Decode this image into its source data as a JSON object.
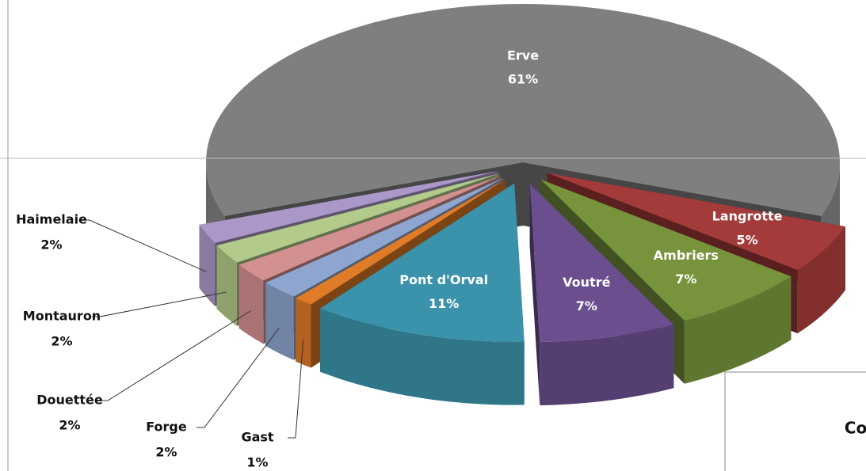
{
  "chart_data": {
    "type": "pie3d",
    "categories": [
      "Erve",
      "Langrotte",
      "Ambriers",
      "Voutré",
      "Pont d'Orval",
      "Gast",
      "Forge",
      "Douettée",
      "Montauron",
      "Haimelaie"
    ],
    "values": [
      61,
      5,
      7,
      7,
      11,
      1,
      2,
      2,
      2,
      2
    ],
    "value_labels": [
      "61%",
      "5%",
      "7%",
      "7%",
      "11%",
      "1%",
      "2%",
      "2%",
      "2%",
      "2%"
    ],
    "colors": [
      "#7f7f7f",
      "#a23b39",
      "#77933c",
      "#6a4e8e",
      "#3b93ab",
      "#e07b27",
      "#8ea5cf",
      "#d39090",
      "#b3cb8a",
      "#ac98c8"
    ]
  },
  "overlay": {
    "text": "Co"
  }
}
